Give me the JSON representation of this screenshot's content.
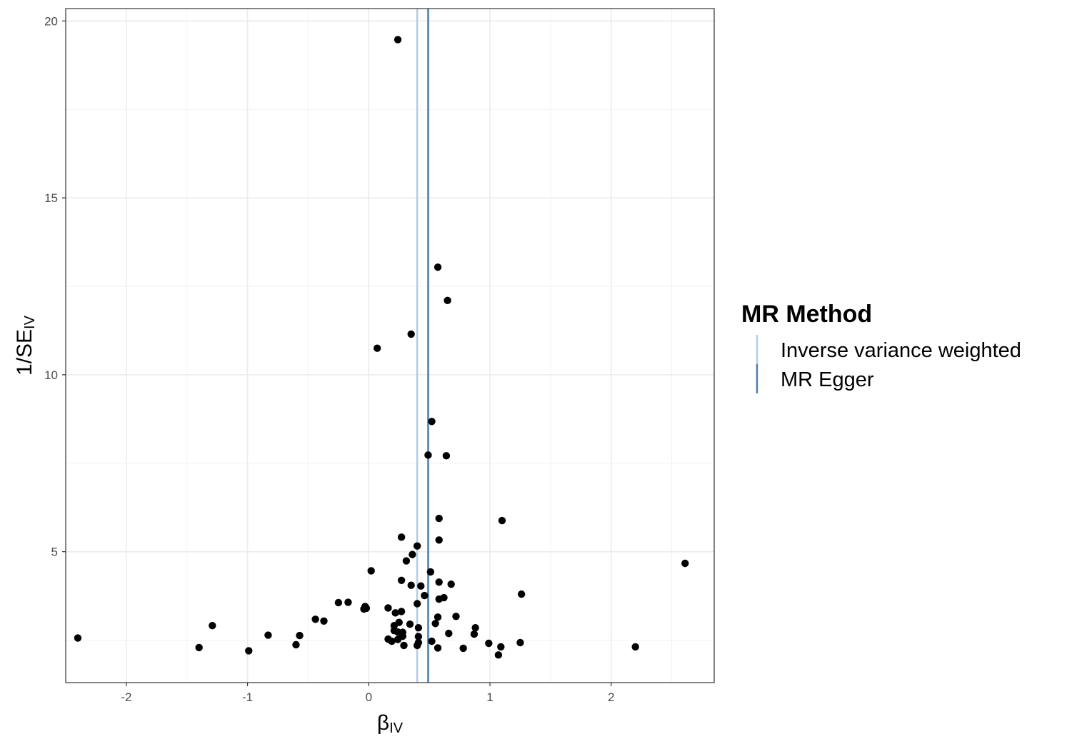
{
  "chart_data": {
    "type": "scatter",
    "xlabel": {
      "main": "β",
      "sub": "IV"
    },
    "ylabel": {
      "main": "1/SE",
      "sub": "IV"
    },
    "xlim": [
      -2.5,
      2.85
    ],
    "ylim": [
      1.3,
      20.35
    ],
    "x_ticks": [
      {
        "value": -2,
        "label": "-2"
      },
      {
        "value": -1,
        "label": "-1"
      },
      {
        "value": 0,
        "label": "0"
      },
      {
        "value": 1,
        "label": "1"
      },
      {
        "value": 2,
        "label": "2"
      }
    ],
    "y_ticks": [
      {
        "value": 5,
        "label": "5"
      },
      {
        "value": 10,
        "label": "10"
      },
      {
        "value": 15,
        "label": "15"
      },
      {
        "value": 20,
        "label": "20"
      }
    ],
    "grid": true,
    "legend": {
      "title": "MR Method",
      "position": "right",
      "entries": [
        {
          "label": "Inverse variance weighted",
          "color": "#b3cde3"
        },
        {
          "label": "MR Egger",
          "color": "#4a7fb5"
        }
      ]
    },
    "vlines": [
      {
        "label": "Inverse variance weighted",
        "x": 0.4,
        "color": "#b3cde3"
      },
      {
        "label": "MR Egger",
        "x": 0.49,
        "color": "#4a7fb5"
      }
    ],
    "points": [
      {
        "x": 0.24,
        "y": 19.47
      },
      {
        "x": 0.57,
        "y": 13.04
      },
      {
        "x": 0.65,
        "y": 12.1
      },
      {
        "x": 0.35,
        "y": 11.15
      },
      {
        "x": 0.07,
        "y": 10.75
      },
      {
        "x": 0.52,
        "y": 8.68
      },
      {
        "x": 0.49,
        "y": 7.73
      },
      {
        "x": 0.64,
        "y": 7.71
      },
      {
        "x": 0.58,
        "y": 5.94
      },
      {
        "x": 1.1,
        "y": 5.88
      },
      {
        "x": 0.27,
        "y": 5.41
      },
      {
        "x": 0.58,
        "y": 5.33
      },
      {
        "x": 0.4,
        "y": 5.16
      },
      {
        "x": 0.36,
        "y": 4.92
      },
      {
        "x": 0.31,
        "y": 4.74
      },
      {
        "x": 2.61,
        "y": 4.67
      },
      {
        "x": 0.02,
        "y": 4.46
      },
      {
        "x": 0.51,
        "y": 4.43
      },
      {
        "x": 0.27,
        "y": 4.19
      },
      {
        "x": 0.58,
        "y": 4.14
      },
      {
        "x": 0.68,
        "y": 4.08
      },
      {
        "x": 0.35,
        "y": 4.05
      },
      {
        "x": 0.43,
        "y": 4.03
      },
      {
        "x": 1.26,
        "y": 3.8
      },
      {
        "x": 0.46,
        "y": 3.76
      },
      {
        "x": 0.62,
        "y": 3.7
      },
      {
        "x": 0.58,
        "y": 3.66
      },
      {
        "x": -0.25,
        "y": 3.56
      },
      {
        "x": -0.17,
        "y": 3.57
      },
      {
        "x": 0.4,
        "y": 3.53
      },
      {
        "x": -0.03,
        "y": 3.45
      },
      {
        "x": -0.04,
        "y": 3.38
      },
      {
        "x": -0.02,
        "y": 3.4
      },
      {
        "x": 0.16,
        "y": 3.41
      },
      {
        "x": 0.27,
        "y": 3.31
      },
      {
        "x": 0.22,
        "y": 3.27
      },
      {
        "x": 0.72,
        "y": 3.17
      },
      {
        "x": 0.57,
        "y": 3.15
      },
      {
        "x": -0.44,
        "y": 3.09
      },
      {
        "x": -0.37,
        "y": 3.04
      },
      {
        "x": 0.25,
        "y": 3.0
      },
      {
        "x": 0.55,
        "y": 2.97
      },
      {
        "x": 0.34,
        "y": 2.95
      },
      {
        "x": 0.21,
        "y": 2.91
      },
      {
        "x": -1.29,
        "y": 2.91
      },
      {
        "x": 0.88,
        "y": 2.85
      },
      {
        "x": 0.41,
        "y": 2.85
      },
      {
        "x": 0.21,
        "y": 2.77
      },
      {
        "x": 0.24,
        "y": 2.73
      },
      {
        "x": 0.28,
        "y": 2.72
      },
      {
        "x": 0.66,
        "y": 2.69
      },
      {
        "x": 0.87,
        "y": 2.67
      },
      {
        "x": -0.83,
        "y": 2.64
      },
      {
        "x": -0.57,
        "y": 2.63
      },
      {
        "x": 0.28,
        "y": 2.61
      },
      {
        "x": 0.41,
        "y": 2.6
      },
      {
        "x": -2.4,
        "y": 2.56
      },
      {
        "x": 0.16,
        "y": 2.53
      },
      {
        "x": 0.24,
        "y": 2.52
      },
      {
        "x": 0.19,
        "y": 2.47
      },
      {
        "x": 0.52,
        "y": 2.47
      },
      {
        "x": 0.41,
        "y": 2.43
      },
      {
        "x": 1.25,
        "y": 2.43
      },
      {
        "x": 0.99,
        "y": 2.41
      },
      {
        "x": -0.6,
        "y": 2.37
      },
      {
        "x": 0.4,
        "y": 2.35
      },
      {
        "x": 0.29,
        "y": 2.35
      },
      {
        "x": 2.2,
        "y": 2.31
      },
      {
        "x": 1.09,
        "y": 2.31
      },
      {
        "x": -1.4,
        "y": 2.29
      },
      {
        "x": 0.57,
        "y": 2.28
      },
      {
        "x": 0.78,
        "y": 2.27
      },
      {
        "x": -0.99,
        "y": 2.2
      },
      {
        "x": 1.07,
        "y": 2.08
      }
    ]
  }
}
